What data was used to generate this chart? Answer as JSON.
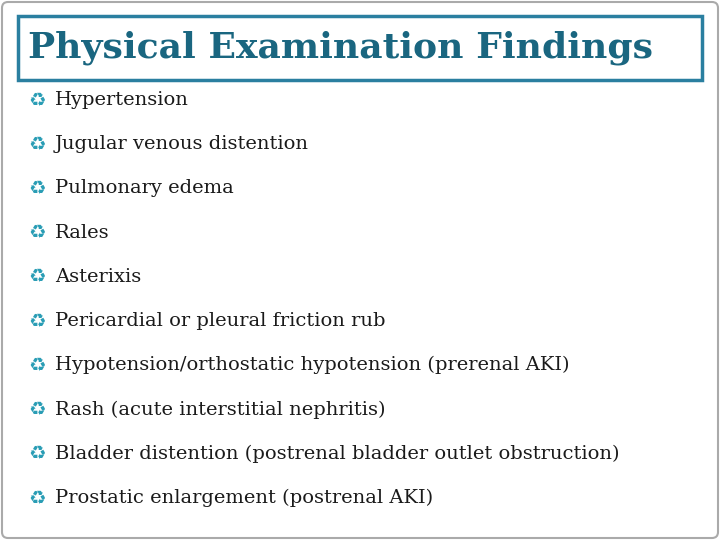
{
  "title": "Physical Examination Findings",
  "title_color": "#1a6680",
  "title_fontsize": 26,
  "bullet_color": "#2a9db5",
  "text_color": "#1a1a1a",
  "items": [
    "Hypertension",
    "Jugular venous distention",
    "Pulmonary edema",
    "Rales",
    "Asterixis",
    "Pericardial or pleural friction rub",
    "Hypotension/orthostatic hypotension (prerenal AKI)",
    "Rash (acute interstitial nephritis)",
    "Bladder distention (postrenal bladder outlet obstruction)",
    "Prostatic enlargement (postrenal AKI)"
  ],
  "item_fontsize": 14,
  "box_edge_color": "#2a9db5",
  "box_facecolor": "#ffffff",
  "outer_bg": "#ffffff",
  "outer_edge_color": "#aaaaaa",
  "title_box_edge_color": "#2a7fa0",
  "fig_width": 7.2,
  "fig_height": 5.4,
  "fig_dpi": 100
}
